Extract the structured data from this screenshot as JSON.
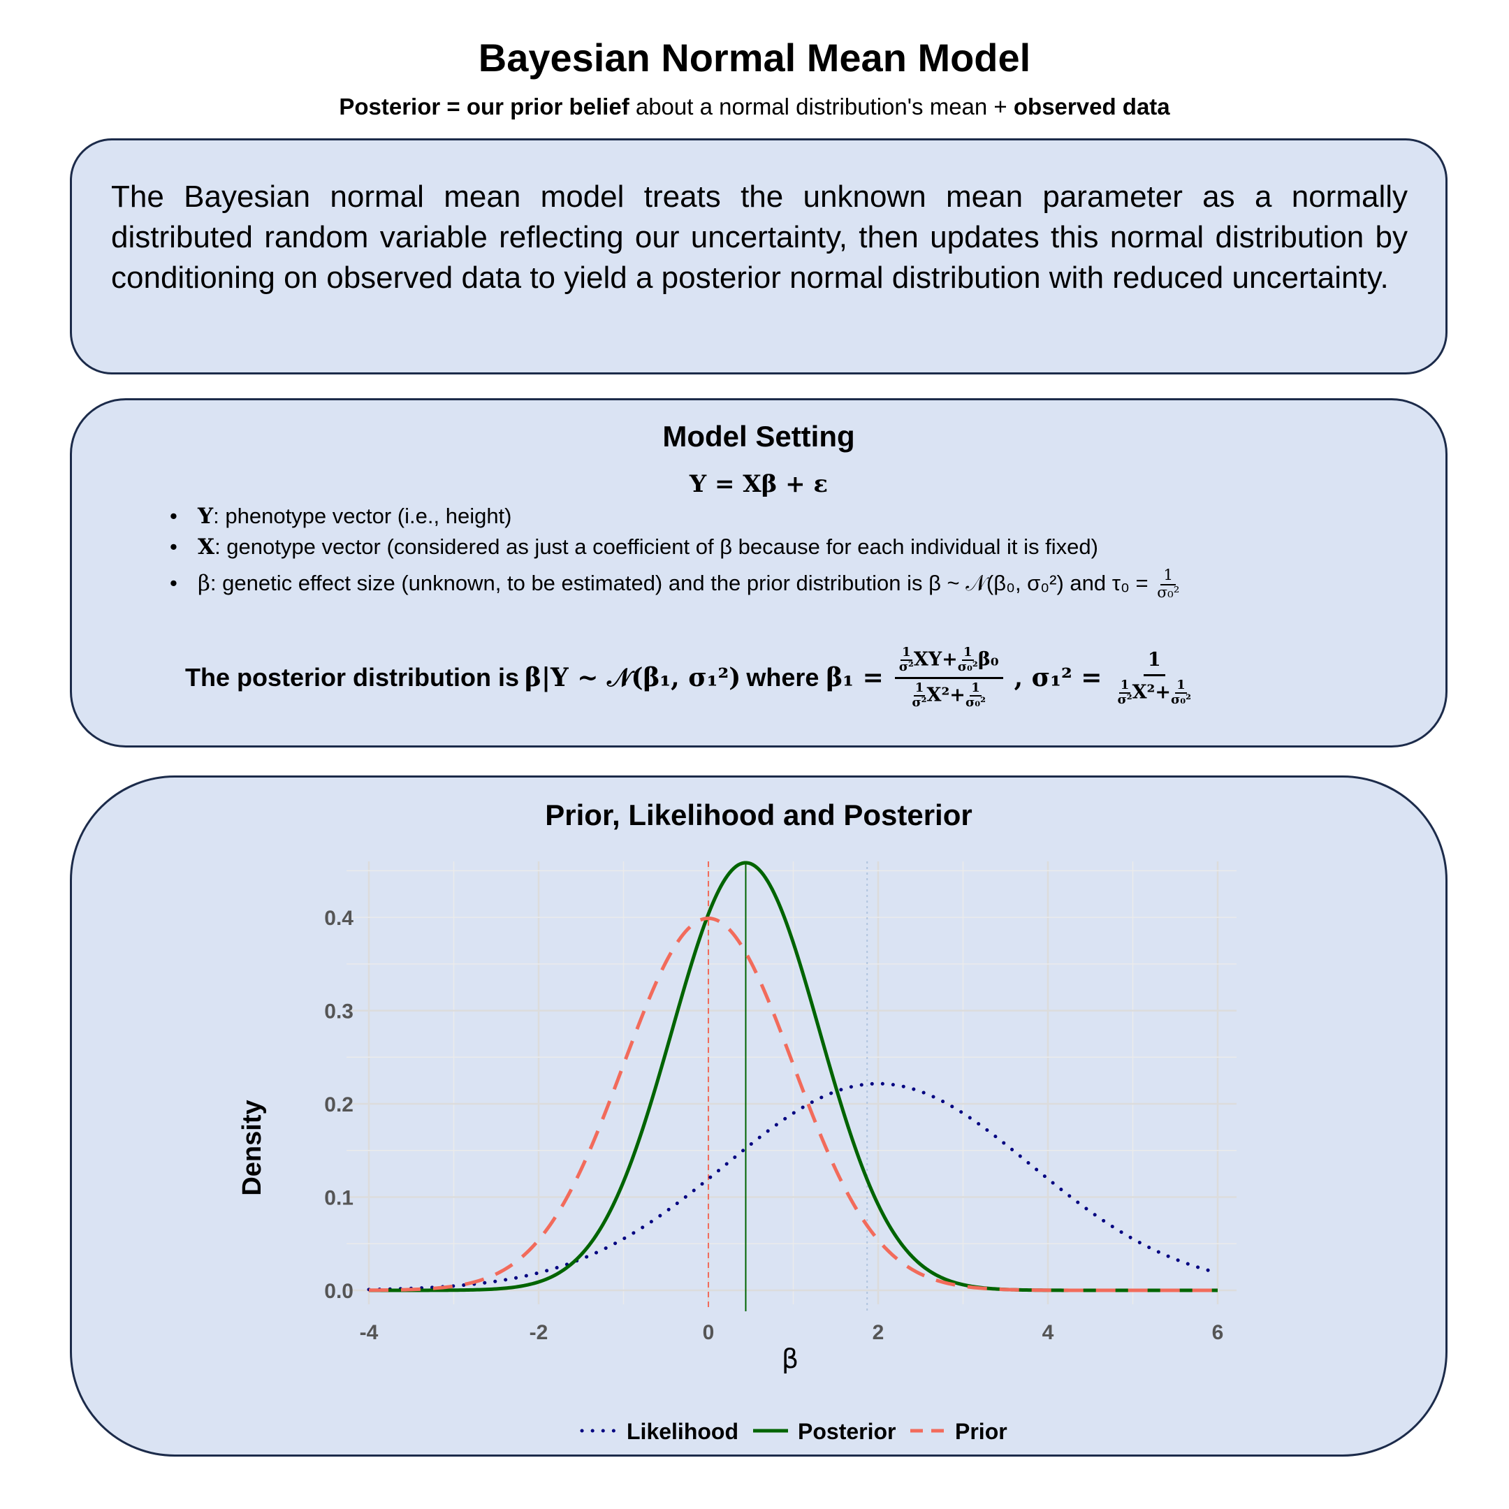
{
  "header": {
    "title": "Bayesian Normal Mean Model",
    "subtitle_posterior": "Posterior = our prior belief",
    "subtitle_middle": " about a normal distribution's mean + ",
    "subtitle_data": "observed data"
  },
  "intro": {
    "text": "The Bayesian normal mean model treats the unknown mean parameter as a normally distributed random variable reflecting our uncertainty, then updates this normal distribution by conditioning on observed data to yield a posterior normal distribution with reduced uncertainty."
  },
  "model": {
    "heading": "Model Setting",
    "equation": "Y = Xβ + ε",
    "bullets": [
      {
        "symbol": "Y",
        "text": ": phenotype vector (i.e., height)"
      },
      {
        "symbol": "X",
        "text": ": genotype vector (considered as just a coefficient of β because for each individual it is fixed)"
      },
      {
        "symbol": "β",
        "text": ": genetic effect size (unknown, to be estimated) and the prior distribution is β ~ 𝒩(β₀, σ₀²) and τ₀ = "
      }
    ],
    "posterior_prefix": "The posterior distribution is",
    "posterior_dist": "β|Y ~ 𝒩(β₁, σ₁²)",
    "posterior_where": "where",
    "beta1_label": "β₁ =",
    "sigma1_label": ", σ₁² ="
  },
  "chart_data": {
    "type": "line",
    "title": "Prior, Likelihood and Posterior",
    "xlabel": "β",
    "ylabel": "Density",
    "xlim": [
      -4,
      6
    ],
    "ylim": [
      0,
      0.46
    ],
    "x_ticks": [
      -4,
      -2,
      0,
      2,
      4,
      6
    ],
    "y_ticks": [
      0.0,
      0.1,
      0.2,
      0.3,
      0.4
    ],
    "grid": true,
    "legend_position": "bottom",
    "series": [
      {
        "name": "Likelihood",
        "distribution": "normal",
        "mean": 2.0,
        "sd": 1.8,
        "style": "dotted",
        "color": "#000080"
      },
      {
        "name": "Posterior",
        "distribution": "normal",
        "mean": 0.44,
        "sd": 0.87,
        "style": "solid",
        "color": "#006400"
      },
      {
        "name": "Prior",
        "distribution": "normal",
        "mean": 0.0,
        "sd": 1.0,
        "style": "dashed",
        "color": "#f26b5b"
      }
    ],
    "vlines": [
      {
        "x": 0.0,
        "color": "#f26b5b",
        "style": "dashed"
      },
      {
        "x": 0.44,
        "color": "#006400",
        "style": "solid"
      },
      {
        "x": 1.87,
        "color": "#b0c4de",
        "style": "dotted"
      }
    ]
  }
}
